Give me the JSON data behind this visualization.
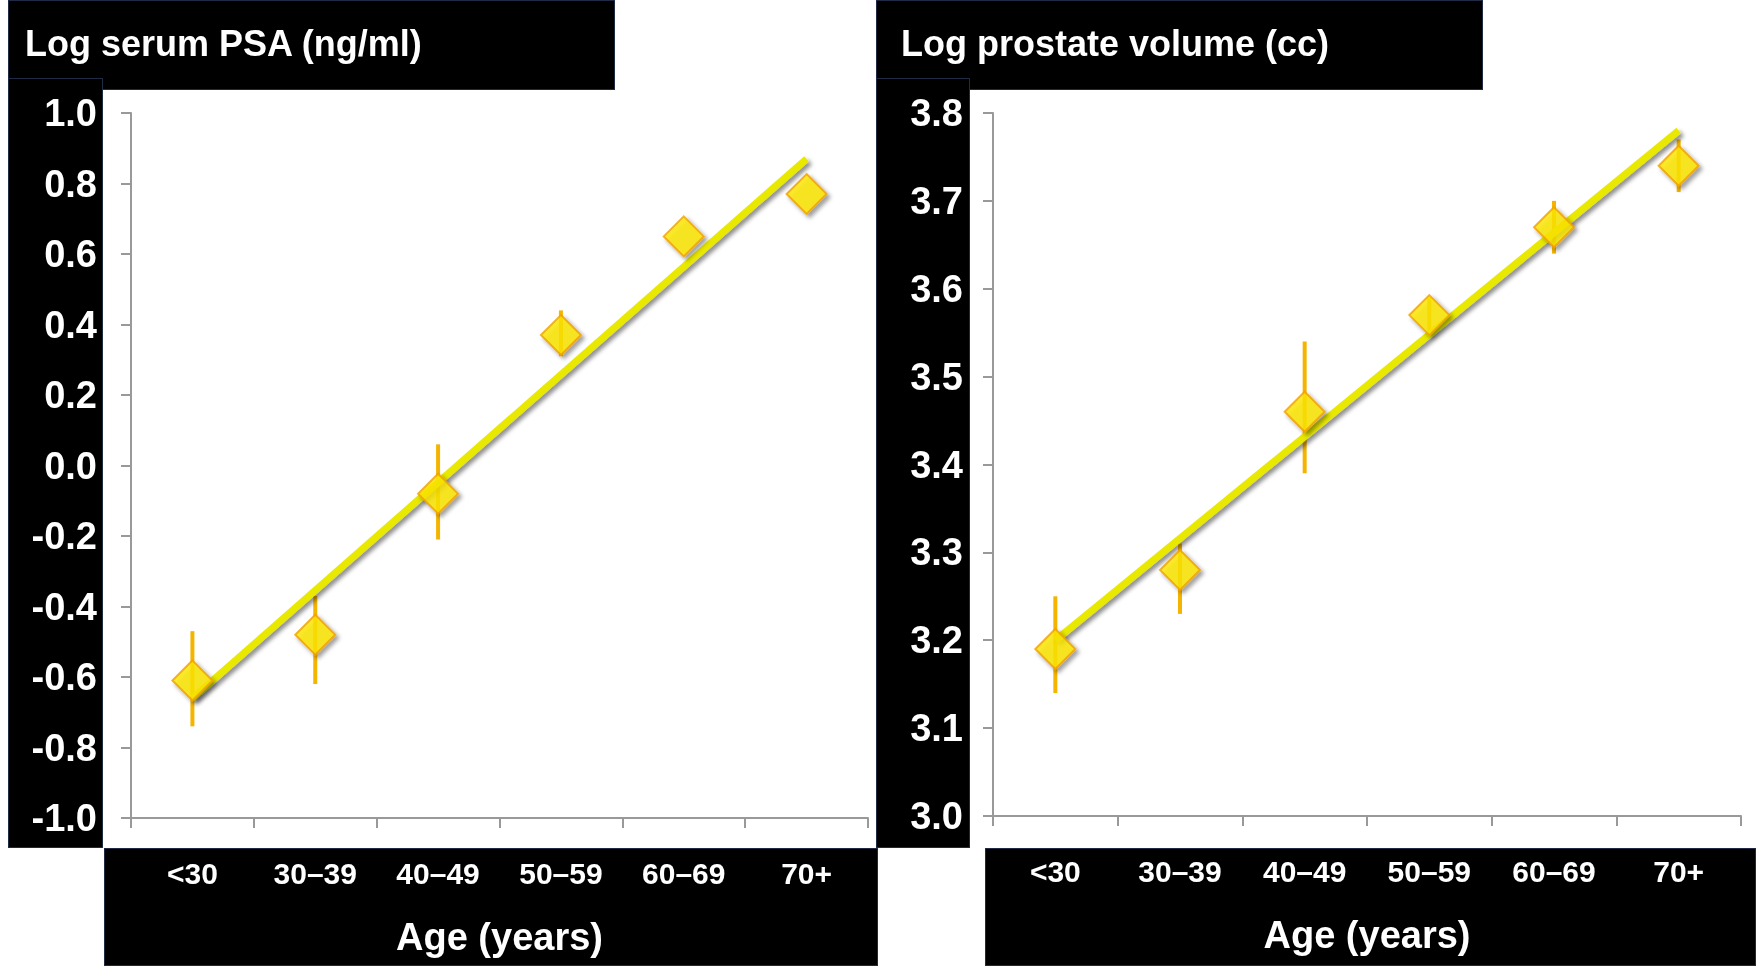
{
  "chart_data": [
    {
      "type": "scatter",
      "title": "Log serum PSA (ng/ml)",
      "xlabel": "Age (years)",
      "categories": [
        "<30",
        "30–39",
        "40–49",
        "50–59",
        "60–69",
        "70+"
      ],
      "series": [
        {
          "color": "#ffe800",
          "marker": "diamond",
          "values": [
            -0.61,
            -0.48,
            -0.08,
            0.37,
            0.65,
            0.77
          ],
          "errors": [
            [
              -0.74,
              -0.47
            ],
            [
              -0.62,
              -0.37
            ],
            [
              -0.21,
              0.06
            ],
            [
              0.31,
              0.44
            ],
            null,
            null
          ]
        },
        {
          "type": "line",
          "color": "#e8e800",
          "x": [
            "<30",
            "70+"
          ],
          "values": [
            -0.66,
            0.87
          ]
        }
      ],
      "ylim": [
        -1,
        1
      ],
      "yticks": [
        {
          "value": -1,
          "label": "-1.0"
        },
        -0.8,
        -0.6,
        -0.4,
        -0.2,
        {
          "value": 0,
          "label": "0.0"
        },
        0.2,
        0.4,
        0.6,
        0.8,
        {
          "value": 1,
          "label": "1.0"
        }
      ]
    },
    {
      "type": "scatter",
      "title": "Log prostate volume (cc)",
      "xlabel": "Age (years)",
      "categories": [
        "<30",
        "30–39",
        "40–49",
        "50–59",
        "60–69",
        "70+"
      ],
      "series": [
        {
          "color": "#ffe800",
          "marker": "diamond",
          "values": [
            3.19,
            3.28,
            3.46,
            3.57,
            3.67,
            3.74
          ],
          "errors": [
            [
              3.14,
              3.25
            ],
            [
              3.23,
              3.31
            ],
            [
              3.39,
              3.54
            ],
            [
              3.55,
              3.59
            ],
            [
              3.64,
              3.7
            ],
            [
              3.71,
              3.77
            ]
          ]
        },
        {
          "type": "line",
          "color": "#e8e800",
          "x": [
            "<30",
            "70+"
          ],
          "values": [
            3.2,
            3.78
          ]
        }
      ],
      "ylim": [
        3,
        3.8
      ],
      "yticks": [
        {
          "value": 3,
          "label": "3.0"
        },
        3.1,
        3.2,
        3.3,
        3.4,
        3.5,
        3.6,
        3.7,
        {
          "value": 3.8,
          "label": "3.8"
        }
      ]
    }
  ]
}
